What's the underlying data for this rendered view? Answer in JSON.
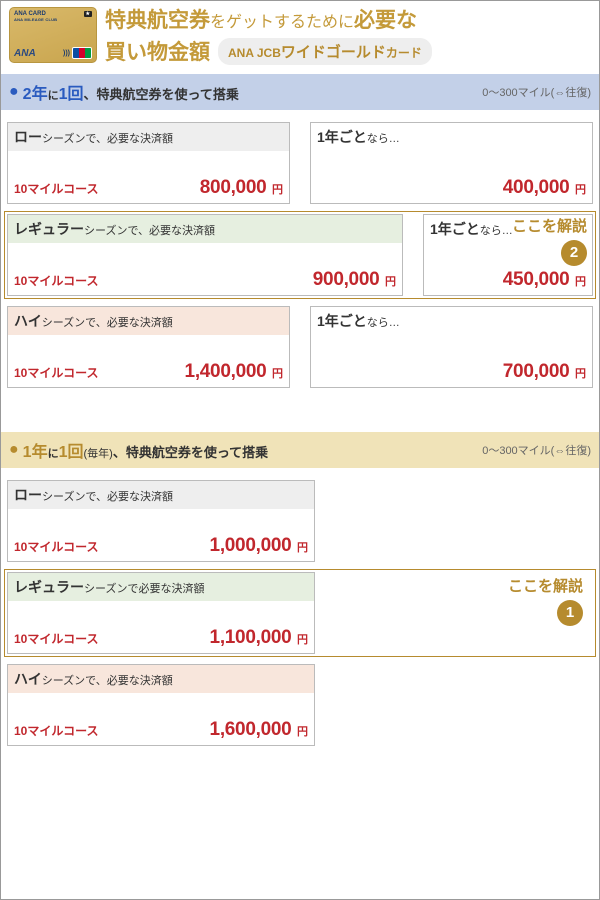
{
  "header": {
    "card_brand_top": "ANA CARD",
    "card_amc": "ANA MILEAGE CLUB",
    "card_ana": "ANA",
    "title_strong1": "特典航空券",
    "title_mid": "をゲットするために",
    "title_strong2": "必要な",
    "title_strong3": "買い物金額",
    "pill_prefix": "ANA JCB",
    "pill_main": "ワイドゴールド",
    "pill_suffix": "カード"
  },
  "colors": {
    "gold_text": "#c49a3a",
    "gold_border": "#b68b2e",
    "blue_bar": "#c3d0e8",
    "gold_bar": "#f0e3b8",
    "red": "#c1272d",
    "low_bg": "#eeeeee",
    "reg_bg": "#e6efe0",
    "high_bg": "#f8e6dc"
  },
  "bar_right": "0～300マイル(⇔往復)",
  "course_label": "10マイルコース",
  "yen": "円",
  "sections": [
    {
      "bar_class": "blue",
      "freq_pre": "2年",
      "freq_mid": "に",
      "freq_post": "1回",
      "freq_tail": "、特典航空券を使って搭乗",
      "rows": [
        {
          "type": "pair",
          "season_class": "low",
          "season": "ロー",
          "season_suffix": "シーズンで、必要な決済額",
          "amount": "800,000",
          "yr_label_b": "1年ごと",
          "yr_label_s": "なら…",
          "yr_amount": "400,000"
        },
        {
          "type": "pair",
          "season_class": "reg",
          "highlight": 2,
          "season": "レギュラー",
          "season_suffix": "シーズンで、必要な決済額",
          "amount": "900,000",
          "yr_label_b": "1年ごと",
          "yr_label_s": "なら…",
          "yr_amount": "450,000"
        },
        {
          "type": "pair",
          "season_class": "high",
          "season": "ハイ",
          "season_suffix": "シーズンで、必要な決済額",
          "amount": "1,400,000",
          "yr_label_b": "1年ごと",
          "yr_label_s": "なら…",
          "yr_amount": "700,000"
        }
      ]
    },
    {
      "bar_class": "gold",
      "freq_pre": "1年",
      "freq_mid": "に",
      "freq_post": "1回",
      "freq_sub": "(毎年)",
      "freq_tail": "、特典航空券を使って搭乗",
      "rows": [
        {
          "type": "single",
          "season_class": "low",
          "season": "ロー",
          "season_suffix": "シーズンで、必要な決済額",
          "amount": "1,000,000"
        },
        {
          "type": "single",
          "season_class": "reg",
          "highlight": 1,
          "season": "レギュラー",
          "season_suffix": "シーズンで必要な決済額",
          "amount": "1,100,000"
        },
        {
          "type": "single",
          "season_class": "high",
          "season": "ハイ",
          "season_suffix": "シーズンで、必要な決済額",
          "amount": "1,600,000"
        }
      ]
    }
  ],
  "hl_text": "ここを解説"
}
